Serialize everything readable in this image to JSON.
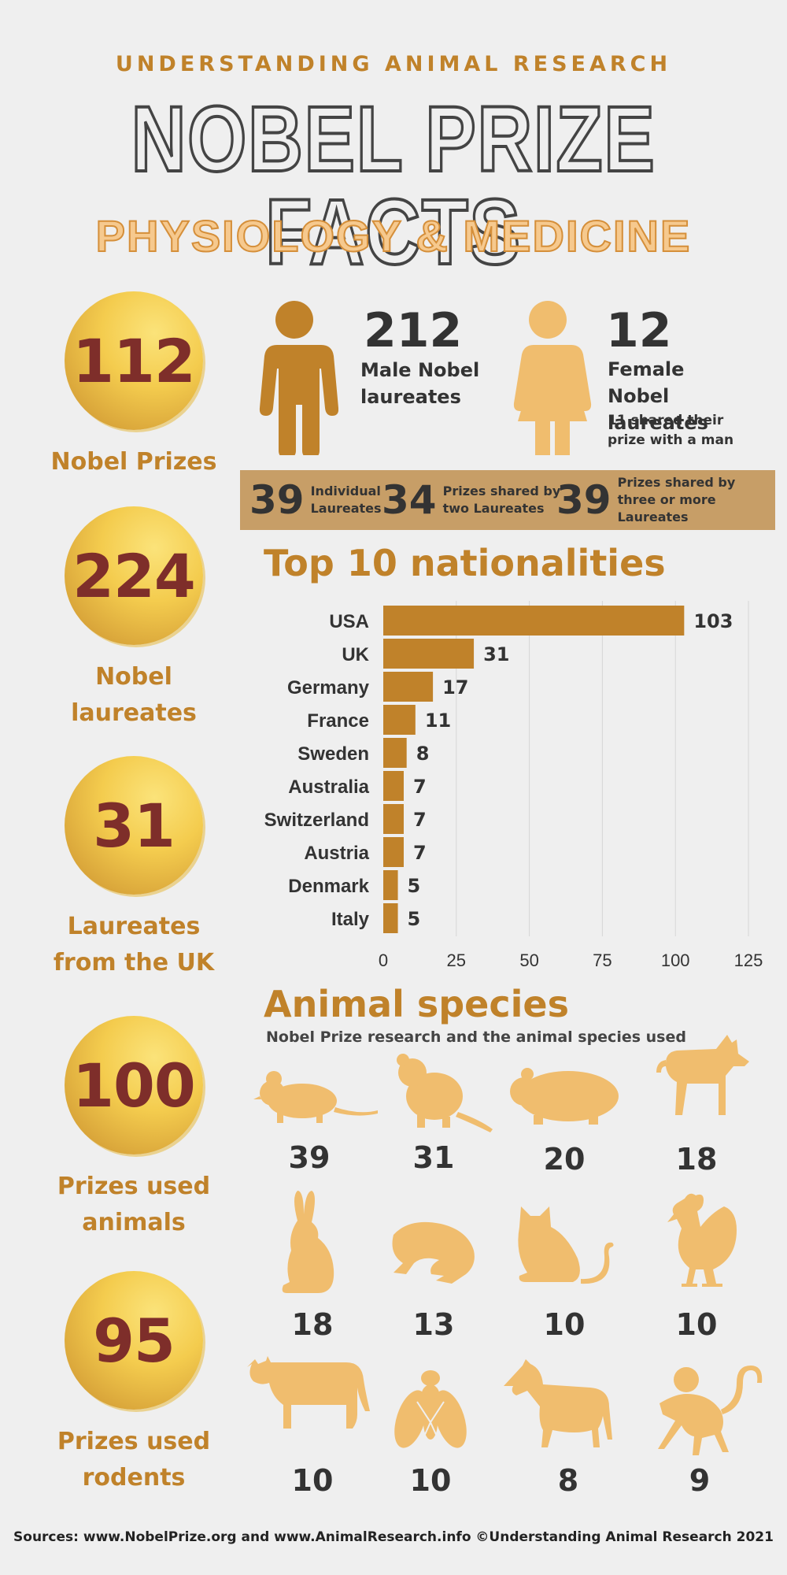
{
  "header": {
    "org": "UNDERSTANDING ANIMAL RESEARCH",
    "title": "NOBEL PRIZE FACTS",
    "subtitle": "PHYSIOLOGY & MEDICINE"
  },
  "stats": [
    {
      "value": "112",
      "label": "Nobel Prizes"
    },
    {
      "value": "224",
      "label": "Nobel laureates"
    },
    {
      "value": "31",
      "label": "Laureates from the UK"
    },
    {
      "value": "100",
      "label": "Prizes used animals"
    },
    {
      "value": "95",
      "label": "Prizes used rodents"
    }
  ],
  "gender": {
    "male": {
      "value": "212",
      "label": "Male Nobel laureates",
      "color": "#c0822a"
    },
    "female": {
      "value": "12",
      "label": "Female Nobel laureates",
      "note": "11 shared their prize with a man",
      "color": "#f0bd6e"
    }
  },
  "band": [
    {
      "value": "39",
      "label": "Individual Laureates"
    },
    {
      "value": "34",
      "label": "Prizes shared by two Laureates"
    },
    {
      "value": "39",
      "label": "Prizes shared by three or more Laureates"
    }
  ],
  "nationalities_title": "Top 10 nationalities",
  "animals_title": "Animal species",
  "animals_subtitle": "Nobel Prize research and the animal species used",
  "animals": [
    {
      "icon": "mouse-icon",
      "count": "39"
    },
    {
      "icon": "rat-icon",
      "count": "31"
    },
    {
      "icon": "guinea-pig-icon",
      "count": "20"
    },
    {
      "icon": "dog-icon",
      "count": "18"
    },
    {
      "icon": "rabbit-icon",
      "count": "18"
    },
    {
      "icon": "frog-icon",
      "count": "13"
    },
    {
      "icon": "cat-icon",
      "count": "10"
    },
    {
      "icon": "chicken-icon",
      "count": "10"
    },
    {
      "icon": "cow-icon",
      "count": "10"
    },
    {
      "icon": "fly-icon",
      "count": "10"
    },
    {
      "icon": "horse-icon",
      "count": "8"
    },
    {
      "icon": "monkey-icon",
      "count": "9"
    }
  ],
  "footer": "Sources: www.NobelPrize.org and www.AnimalResearch.info  ©Understanding Animal Research 2021",
  "colors": {
    "accent": "#c0822a",
    "light": "#f0bd6e",
    "coin_text": "#7e2e2a",
    "band": "#c79e67"
  },
  "chart_data": {
    "type": "bar",
    "orientation": "horizontal",
    "title": "Top 10 nationalities",
    "categories": [
      "USA",
      "UK",
      "Germany",
      "France",
      "Sweden",
      "Australia",
      "Switzerland",
      "Austria",
      "Denmark",
      "Italy"
    ],
    "values": [
      103,
      31,
      17,
      11,
      8,
      7,
      7,
      7,
      5,
      5
    ],
    "xlim": [
      0,
      125
    ],
    "xticks": [
      0,
      25,
      50,
      75,
      100,
      125
    ],
    "grid": true,
    "bar_color": "#c0822a"
  }
}
